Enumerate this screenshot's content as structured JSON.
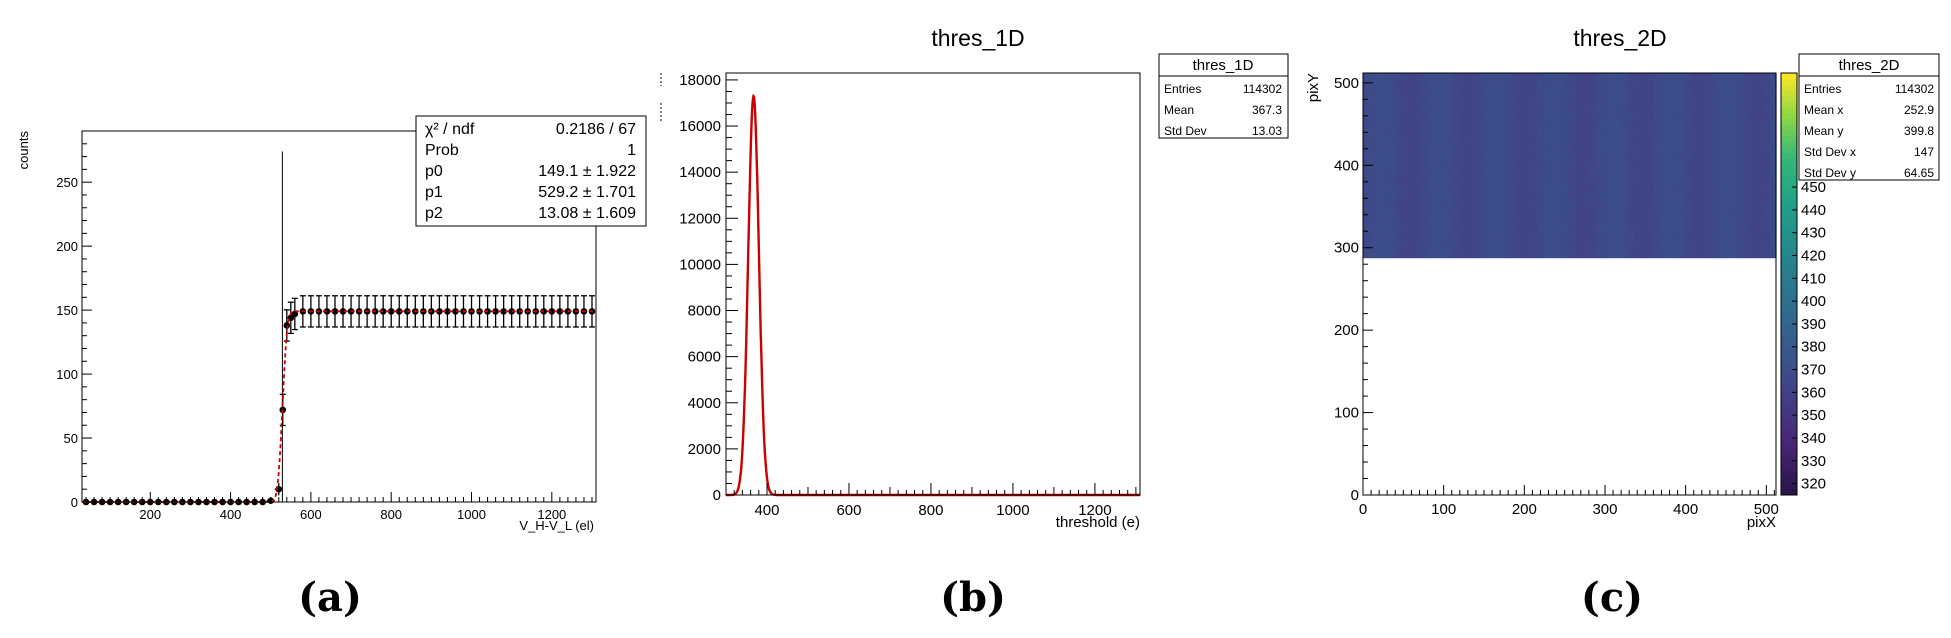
{
  "colors": {
    "fit": "#cc0000",
    "points": "#000000",
    "frame": "#000000",
    "hist": "#000000"
  },
  "chart_data": [
    {
      "type": "scatter",
      "panel_label": "(a)",
      "xlabel": "V_H-V_L (el)",
      "ylabel": "counts",
      "xlim": [
        30,
        1310
      ],
      "ylim": [
        0,
        290
      ],
      "x_ticks": [
        200,
        400,
        600,
        800,
        1000,
        1200
      ],
      "y_ticks": [
        0,
        50,
        100,
        150,
        200,
        250
      ],
      "x_step": 20,
      "y_error": 12.2,
      "points": [
        [
          40,
          0
        ],
        [
          60,
          0
        ],
        [
          80,
          0
        ],
        [
          100,
          0
        ],
        [
          120,
          0
        ],
        [
          140,
          0
        ],
        [
          160,
          0
        ],
        [
          180,
          0
        ],
        [
          200,
          0
        ],
        [
          220,
          0
        ],
        [
          240,
          0
        ],
        [
          260,
          0
        ],
        [
          280,
          0
        ],
        [
          300,
          0
        ],
        [
          320,
          0
        ],
        [
          340,
          0
        ],
        [
          360,
          0
        ],
        [
          380,
          0
        ],
        [
          400,
          0
        ],
        [
          420,
          0
        ],
        [
          440,
          0
        ],
        [
          460,
          0
        ],
        [
          480,
          0
        ],
        [
          500,
          1
        ],
        [
          520,
          10
        ],
        [
          530,
          72
        ],
        [
          540,
          138
        ],
        [
          550,
          144
        ],
        [
          560,
          147
        ],
        [
          580,
          149
        ],
        [
          600,
          149
        ],
        [
          620,
          149
        ],
        [
          640,
          149
        ],
        [
          660,
          149
        ],
        [
          680,
          149
        ],
        [
          700,
          149
        ],
        [
          720,
          149
        ],
        [
          740,
          149
        ],
        [
          760,
          149
        ],
        [
          780,
          149
        ],
        [
          800,
          149
        ],
        [
          820,
          149
        ],
        [
          840,
          149
        ],
        [
          860,
          149
        ],
        [
          880,
          149
        ],
        [
          900,
          149
        ],
        [
          920,
          149
        ],
        [
          940,
          149
        ],
        [
          960,
          149
        ],
        [
          980,
          149
        ],
        [
          1000,
          149
        ],
        [
          1020,
          149
        ],
        [
          1040,
          149
        ],
        [
          1060,
          149
        ],
        [
          1080,
          149
        ],
        [
          1100,
          149
        ],
        [
          1120,
          149
        ],
        [
          1140,
          149
        ],
        [
          1160,
          149
        ],
        [
          1180,
          149
        ],
        [
          1200,
          149
        ],
        [
          1220,
          149
        ],
        [
          1240,
          149
        ],
        [
          1260,
          149
        ],
        [
          1280,
          149
        ],
        [
          1300,
          149
        ]
      ],
      "vline_x": 529,
      "vline_top": 274,
      "fit": {
        "p0": 149.1,
        "p1": 529.2,
        "p2": 13.08
      },
      "stats": [
        {
          "label": "χ² / ndf",
          "value": "0.2186 / 67"
        },
        {
          "label": "Prob",
          "value": "1"
        },
        {
          "label": "p0",
          "value": "149.1 ± 1.922"
        },
        {
          "label": "p1",
          "value": "529.2 ± 1.701"
        },
        {
          "label": "p2",
          "value": "13.08 ± 1.609"
        }
      ]
    },
    {
      "type": "area",
      "panel_label": "(b)",
      "title": "thres_1D",
      "xlabel": "threshold (e)",
      "xlim": [
        300,
        1310
      ],
      "ylim": [
        0,
        18300
      ],
      "x_ticks": [
        400,
        600,
        800,
        1000,
        1200
      ],
      "y_ticks": [
        0,
        2000,
        4000,
        6000,
        8000,
        10000,
        12000,
        14000,
        16000,
        18000
      ],
      "gaussian": {
        "mean": 367.3,
        "sigma": 13.03,
        "peak": 17300,
        "bin_width": 2
      },
      "stats_title": "thres_1D",
      "stats": [
        {
          "label": "Entries",
          "value": "114302"
        },
        {
          "label": "Mean",
          "value": "367.3"
        },
        {
          "label": "Std Dev",
          "value": "13.03"
        }
      ]
    },
    {
      "type": "heatmap",
      "panel_label": "(c)",
      "title": "thres_2D",
      "xlabel": "pixX",
      "ylabel": "pixY",
      "xlim": [
        0,
        512
      ],
      "ylim": [
        0,
        512
      ],
      "x_ticks": [
        0,
        100,
        200,
        300,
        400,
        500
      ],
      "y_ticks": [
        0,
        100,
        200,
        300,
        400,
        500
      ],
      "filled_rows": [
        288,
        512
      ],
      "z_range": [
        315,
        500
      ],
      "z_typical": [
        360,
        372
      ],
      "colorbar_ticks": [
        320,
        330,
        340,
        350,
        360,
        370,
        380,
        390,
        400,
        410,
        420,
        430,
        440,
        450
      ],
      "stats_title": "thres_2D",
      "stats": [
        {
          "label": "Entries",
          "value": "114302"
        },
        {
          "label": "Mean x",
          "value": "252.9"
        },
        {
          "label": "Mean y",
          "value": "399.8"
        },
        {
          "label": "Std Dev x",
          "value": "147"
        },
        {
          "label": "Std Dev y",
          "value": "64.65"
        }
      ]
    }
  ]
}
